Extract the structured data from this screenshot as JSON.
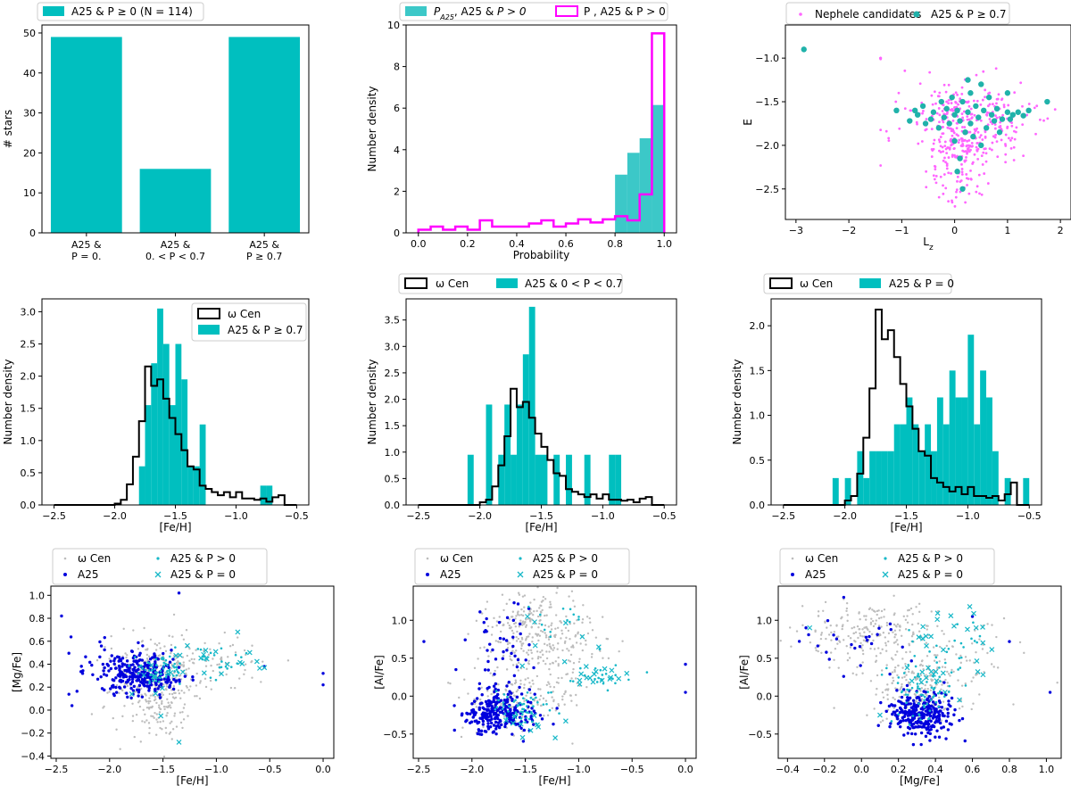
{
  "figure": "Nine-panel comparison of A25 stars, Nephele candidates and omega Cen",
  "chart_data": [
    {
      "id": "p1",
      "type": "bar",
      "categories": [
        "A25 &\nP = 0.",
        "A25 &\n0. < P < 0.7",
        "A25 &\nP ≥ 0.7"
      ],
      "values": [
        49,
        16,
        49
      ],
      "xlabel": "",
      "ylabel": "# stars",
      "ylim": [
        0,
        52
      ],
      "yticks": [
        0,
        10,
        20,
        30,
        40,
        50
      ],
      "legend": [
        "A25 & P ≥ 0 (N = 114)"
      ],
      "legend_loc": "top",
      "color": "#00bfbf"
    },
    {
      "id": "p2",
      "type": "bar",
      "bin_edges": [
        0.8,
        0.85,
        0.9,
        0.95,
        1.0
      ],
      "values": [
        2.8,
        3.85,
        4.55,
        6.15
      ],
      "step_series": {
        "name": "P , A25 & P > 0",
        "bin_edges": [
          0.0,
          0.05,
          0.1,
          0.15,
          0.2,
          0.25,
          0.3,
          0.35,
          0.4,
          0.45,
          0.5,
          0.55,
          0.6,
          0.65,
          0.7,
          0.75,
          0.8,
          0.85,
          0.9,
          0.95,
          1.0
        ],
        "values": [
          0.15,
          0.3,
          0.15,
          0.3,
          0.15,
          0.6,
          0.3,
          0.3,
          0.3,
          0.45,
          0.6,
          0.3,
          0.45,
          0.65,
          0.5,
          0.65,
          0.8,
          0.6,
          1.85,
          9.6
        ]
      },
      "xlabel": "Probability",
      "ylabel": "Number density",
      "xlim": [
        -0.05,
        1.05
      ],
      "ylim": [
        0,
        10
      ],
      "xticks": [
        0.0,
        0.2,
        0.4,
        0.6,
        0.8,
        1.0
      ],
      "yticks": [
        0,
        2,
        4,
        6,
        8,
        10
      ],
      "legend": [
        "P_A25, A25 & P > 0",
        "P , A25 & P > 0"
      ],
      "legend_loc": "top",
      "colors": [
        "#3cc8c8",
        "#ff00ff"
      ]
    },
    {
      "id": "p3",
      "type": "scatter",
      "series": [
        {
          "name": "Nephele candidates",
          "color": "#ff66ff",
          "n": 420
        },
        {
          "name": "A25 & P ≥ 0.7",
          "color": "#20b2aa",
          "n": 49,
          "points": [
            [
              -2.85,
              -0.9
            ],
            [
              -1.1,
              -1.6
            ],
            [
              -0.85,
              -1.72
            ],
            [
              -0.7,
              -1.65
            ],
            [
              -0.6,
              -1.55
            ],
            [
              -0.55,
              -1.75
            ],
            [
              -0.45,
              -1.7
            ],
            [
              -0.4,
              -1.62
            ],
            [
              -0.3,
              -1.8
            ],
            [
              -0.25,
              -1.5
            ],
            [
              -0.2,
              -1.68
            ],
            [
              -0.15,
              -1.58
            ],
            [
              -0.1,
              -1.75
            ],
            [
              -0.05,
              -1.45
            ],
            [
              0.0,
              -1.65
            ],
            [
              0.0,
              -1.95
            ],
            [
              0.05,
              -1.6
            ],
            [
              0.05,
              -2.3
            ],
            [
              0.1,
              -1.72
            ],
            [
              0.1,
              -2.15
            ],
            [
              0.15,
              -1.5
            ],
            [
              0.15,
              -2.5
            ],
            [
              0.2,
              -1.85
            ],
            [
              0.25,
              -1.62
            ],
            [
              0.3,
              -1.4
            ],
            [
              0.3,
              -1.75
            ],
            [
              0.35,
              -1.9
            ],
            [
              0.4,
              -1.55
            ],
            [
              0.45,
              -1.68
            ],
            [
              0.5,
              -1.3
            ],
            [
              0.5,
              -2.0
            ],
            [
              0.55,
              -1.6
            ],
            [
              0.6,
              -1.8
            ],
            [
              0.65,
              -1.45
            ],
            [
              0.7,
              -1.65
            ],
            [
              0.75,
              -1.72
            ],
            [
              0.8,
              -1.58
            ],
            [
              0.85,
              -1.85
            ],
            [
              0.9,
              -1.7
            ],
            [
              1.0,
              -1.62
            ],
            [
              1.0,
              -1.4
            ],
            [
              1.05,
              -1.7
            ],
            [
              1.1,
              -1.65
            ],
            [
              1.2,
              -1.62
            ],
            [
              1.3,
              -1.66
            ],
            [
              1.4,
              -1.6
            ],
            [
              1.75,
              -1.5
            ],
            [
              -0.75,
              -1.6
            ],
            [
              0.25,
              -1.25
            ]
          ]
        }
      ],
      "xlabel": "L_z",
      "ylabel": "E",
      "xlim": [
        -3.2,
        2.2
      ],
      "ylim": [
        -2.85,
        -0.62
      ],
      "xticks": [
        -3,
        -2,
        -1,
        0,
        1,
        2
      ],
      "yticks": [
        -1.0,
        -1.5,
        -2.0,
        -2.5
      ],
      "legend": [
        "Nephele candidates",
        "A25 & P ≥ 0.7"
      ],
      "legend_loc": "top"
    },
    {
      "id": "p4",
      "type": "bar",
      "bin_edges": [
        -1.8,
        -1.75,
        -1.7,
        -1.65,
        -1.6,
        -1.55,
        -1.5,
        -1.45,
        -1.4,
        -1.35,
        -1.3,
        -1.25,
        -1.2,
        -1.15,
        -1.1,
        -1.05,
        -1.0,
        -0.95,
        -0.9,
        -0.85,
        -0.8,
        -0.75,
        -0.7
      ],
      "values": [
        0.6,
        1.55,
        2.2,
        3.05,
        2.5,
        1.55,
        2.5,
        1.95,
        0.6,
        0.6,
        1.25,
        0,
        0,
        0,
        0,
        0,
        0,
        0,
        0,
        0,
        0.3,
        0.3
      ],
      "step_series": {
        "name": "ω Cen",
        "bin_edges": [
          -2.5,
          -2.45,
          -2.4,
          -2.35,
          -2.3,
          -2.25,
          -2.2,
          -2.15,
          -2.1,
          -2.05,
          -2.0,
          -1.95,
          -1.9,
          -1.85,
          -1.8,
          -1.75,
          -1.7,
          -1.65,
          -1.6,
          -1.55,
          -1.5,
          -1.45,
          -1.4,
          -1.35,
          -1.3,
          -1.25,
          -1.2,
          -1.15,
          -1.1,
          -1.05,
          -1.0,
          -0.95,
          -0.9,
          -0.85,
          -0.8,
          -0.75,
          -0.7,
          -0.65,
          -0.6,
          -0.55,
          -0.5
        ],
        "values": [
          0.0,
          0.0,
          0.0,
          0.0,
          0.0,
          0.0,
          0.0,
          0.0,
          0.0,
          0.0,
          0.02,
          0.08,
          0.32,
          0.75,
          1.3,
          2.15,
          1.85,
          1.95,
          1.65,
          1.35,
          1.1,
          0.85,
          0.6,
          0.55,
          0.3,
          0.25,
          0.2,
          0.15,
          0.2,
          0.12,
          0.2,
          0.1,
          0.1,
          0.08,
          0.1,
          0.05,
          0.12,
          0.15,
          0.0,
          0.0
        ]
      },
      "xlabel": "[Fe/H]",
      "ylabel": "Number density",
      "xlim": [
        -2.6,
        -0.4
      ],
      "ylim": [
        0,
        3.2
      ],
      "xticks": [
        -2.5,
        -2.0,
        -1.5,
        -1.0,
        -0.5
      ],
      "yticks": [
        0.0,
        0.5,
        1.0,
        1.5,
        2.0,
        2.5,
        3.0
      ],
      "legend": [
        "ω Cen",
        "A25 & P ≥  0.7"
      ],
      "legend_loc": "upper right"
    },
    {
      "id": "p5",
      "type": "bar",
      "bin_edges": [
        -2.1,
        -2.05,
        -2.0,
        -1.95,
        -1.9,
        -1.85,
        -1.8,
        -1.75,
        -1.7,
        -1.65,
        -1.6,
        -1.55,
        -1.5,
        -1.45,
        -1.4,
        -1.35,
        -1.3,
        -1.25,
        -1.2,
        -1.15,
        -1.1,
        -1.05,
        -1.0,
        -0.95,
        -0.9,
        -0.85,
        -0.8
      ],
      "values": [
        0.95,
        0,
        0,
        1.9,
        0,
        0.95,
        1.9,
        0.95,
        1.9,
        2.85,
        3.75,
        0.95,
        0.95,
        0,
        0.95,
        0,
        0.95,
        0,
        0,
        0.95,
        0,
        0,
        0,
        0.95,
        0.95,
        0.0
      ],
      "step_series": {
        "name": "ω Cen",
        "bin_edges": [
          -2.5,
          -2.45,
          -2.4,
          -2.35,
          -2.3,
          -2.25,
          -2.2,
          -2.15,
          -2.1,
          -2.05,
          -2.0,
          -1.95,
          -1.9,
          -1.85,
          -1.8,
          -1.75,
          -1.7,
          -1.65,
          -1.6,
          -1.55,
          -1.5,
          -1.45,
          -1.4,
          -1.35,
          -1.3,
          -1.25,
          -1.2,
          -1.15,
          -1.1,
          -1.05,
          -1.0,
          -0.95,
          -0.9,
          -0.85,
          -0.8,
          -0.75,
          -0.7,
          -0.65,
          -0.6,
          -0.55,
          -0.5
        ],
        "values": [
          0,
          0,
          0,
          0,
          0,
          0,
          0,
          0,
          0,
          0,
          0.05,
          0.1,
          0.35,
          0.75,
          1.3,
          2.2,
          1.85,
          1.95,
          1.65,
          1.35,
          1.1,
          0.85,
          0.6,
          0.55,
          0.3,
          0.25,
          0.2,
          0.15,
          0.2,
          0.12,
          0.2,
          0.1,
          0.1,
          0.08,
          0.1,
          0.05,
          0.12,
          0.15,
          0.0,
          0.0
        ]
      },
      "xlabel": "[Fe/H]",
      "ylabel": "Number density",
      "xlim": [
        -2.6,
        -0.4
      ],
      "ylim": [
        0,
        3.9
      ],
      "xticks": [
        -2.5,
        -2.0,
        -1.5,
        -1.0,
        -0.5
      ],
      "yticks": [
        0.0,
        0.5,
        1.0,
        1.5,
        2.0,
        2.5,
        3.0,
        3.5
      ],
      "legend": [
        "ω Cen",
        "A25 & 0 < P < 0.7"
      ],
      "legend_loc": "top"
    },
    {
      "id": "p6",
      "type": "bar",
      "bin_edges": [
        -2.1,
        -2.05,
        -2.0,
        -1.95,
        -1.9,
        -1.85,
        -1.8,
        -1.75,
        -1.7,
        -1.65,
        -1.6,
        -1.55,
        -1.5,
        -1.45,
        -1.4,
        -1.35,
        -1.3,
        -1.25,
        -1.2,
        -1.15,
        -1.1,
        -1.05,
        -1.0,
        -0.95,
        -0.9,
        -0.85,
        -0.8,
        -0.75,
        -0.7,
        -0.65,
        -0.6,
        -0.55,
        -0.5
      ],
      "values": [
        0.3,
        0,
        0.3,
        0,
        0.6,
        0.3,
        0.6,
        0.6,
        0.6,
        0.6,
        0.9,
        0.9,
        1.2,
        0.9,
        0.6,
        0.9,
        0.6,
        1.2,
        0.9,
        1.5,
        1.2,
        1.2,
        1.9,
        0.9,
        1.5,
        1.2,
        0.6,
        0,
        0.3,
        0,
        0,
        0.3
      ],
      "step_series": {
        "name": "ω Cen",
        "bin_edges": [
          -2.5,
          -2.45,
          -2.4,
          -2.35,
          -2.3,
          -2.25,
          -2.2,
          -2.15,
          -2.1,
          -2.05,
          -2.0,
          -1.95,
          -1.9,
          -1.85,
          -1.8,
          -1.75,
          -1.7,
          -1.65,
          -1.6,
          -1.55,
          -1.5,
          -1.45,
          -1.4,
          -1.35,
          -1.3,
          -1.25,
          -1.2,
          -1.15,
          -1.1,
          -1.05,
          -1.0,
          -0.95,
          -0.9,
          -0.85,
          -0.8,
          -0.75,
          -0.7,
          -0.65,
          -0.6,
          -0.55,
          -0.5
        ],
        "values": [
          0,
          0,
          0,
          0,
          0,
          0,
          0,
          0,
          0,
          0,
          0.05,
          0.1,
          0.35,
          0.75,
          1.3,
          2.18,
          1.85,
          1.95,
          1.65,
          1.35,
          1.1,
          0.85,
          0.6,
          0.55,
          0.3,
          0.25,
          0.2,
          0.15,
          0.2,
          0.12,
          0.2,
          0.1,
          0.1,
          0.08,
          0.1,
          0.05,
          0.12,
          0.25,
          0.0,
          0.0
        ]
      },
      "xlabel": "[Fe/H]",
      "ylabel": "Number density",
      "xlim": [
        -2.6,
        -0.4
      ],
      "ylim": [
        0,
        2.3
      ],
      "xticks": [
        -2.5,
        -2.0,
        -1.5,
        -1.0,
        -0.5
      ],
      "yticks": [
        0.0,
        0.5,
        1.0,
        1.5,
        2.0
      ],
      "legend": [
        "ω Cen",
        "A25 & P = 0"
      ],
      "legend_loc": "top"
    },
    {
      "id": "p7",
      "type": "scatter",
      "xlabel": "[Fe/H]",
      "ylabel": "[Mg/Fe]",
      "xlim": [
        -2.55,
        0.1
      ],
      "ylim": [
        -0.42,
        1.08
      ],
      "xticks": [
        -2.5,
        -2.0,
        -1.5,
        -1.0,
        -0.5,
        0.0
      ],
      "yticks": [
        -0.4,
        -0.2,
        0.0,
        0.2,
        0.4,
        0.6,
        0.8,
        1.0
      ],
      "legend": [
        "ω Cen",
        "A25",
        "A25 & P > 0",
        "A25 & P = 0"
      ],
      "legend_loc": "top"
    },
    {
      "id": "p8",
      "type": "scatter",
      "xlabel": "[Fe/H]",
      "ylabel": "[Al/Fe]",
      "xlim": [
        -2.55,
        0.1
      ],
      "ylim": [
        -0.82,
        1.45
      ],
      "xticks": [
        -2.5,
        -2.0,
        -1.5,
        -1.0,
        -0.5,
        0.0
      ],
      "yticks": [
        -0.5,
        0.0,
        0.5,
        1.0
      ],
      "legend": [
        "ω Cen",
        "A25",
        "A25 & P > 0",
        "A25 & P = 0"
      ],
      "legend_loc": "top"
    },
    {
      "id": "p9",
      "type": "scatter",
      "xlabel": "[Mg/Fe]",
      "ylabel": "[Al/Fe]",
      "xlim": [
        -0.45,
        1.08
      ],
      "ylim": [
        -0.82,
        1.45
      ],
      "xticks": [
        -0.4,
        -0.2,
        0.0,
        0.2,
        0.4,
        0.6,
        0.8,
        1.0
      ],
      "yticks": [
        -0.5,
        0.0,
        0.5,
        1.0
      ],
      "legend": [
        "ω Cen",
        "A25",
        "A25 & P > 0",
        "A25 & P = 0"
      ],
      "legend_loc": "top"
    }
  ]
}
